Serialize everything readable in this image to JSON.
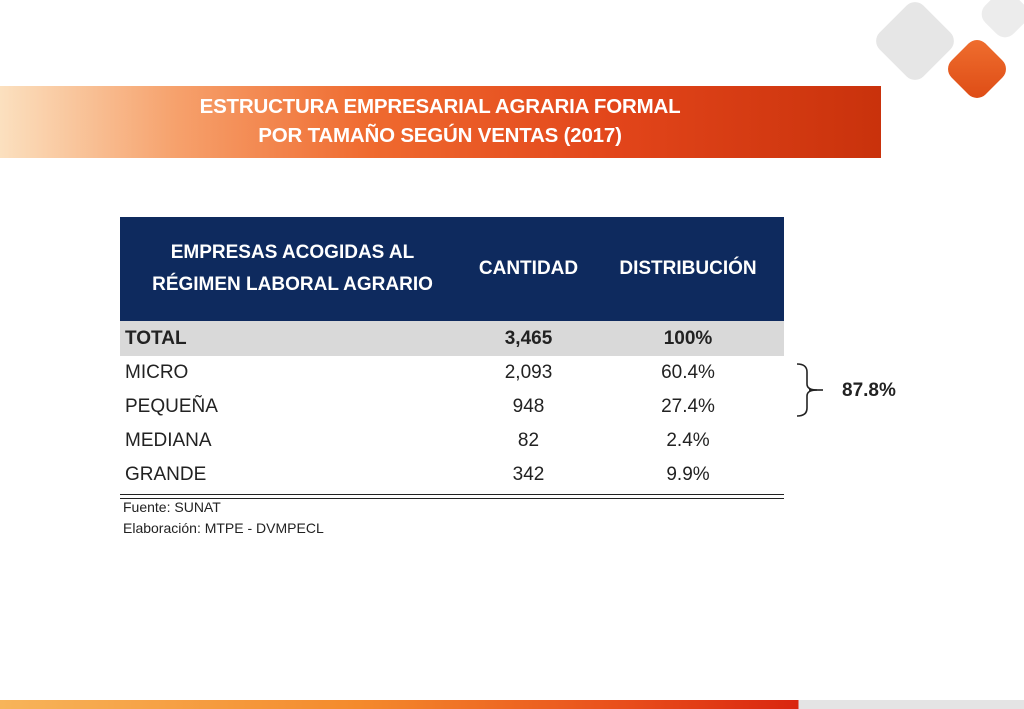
{
  "title": {
    "line1": "ESTRUCTURA EMPRESARIAL AGRARIA FORMAL",
    "line2": "POR TAMAÑO SEGÚN VENTAS (2017)"
  },
  "table": {
    "headers": {
      "col1_line1": "EMPRESAS ACOGIDAS AL",
      "col1_line2": "RÉGIMEN LABORAL AGRARIO",
      "col2": "CANTIDAD",
      "col3": "DISTRIBUCIÓN"
    },
    "total": {
      "label": "TOTAL",
      "cantidad": "3,465",
      "distribucion": "100%"
    },
    "rows": [
      {
        "label": "MICRO",
        "cantidad": "2,093",
        "distribucion": "60.4%"
      },
      {
        "label": "PEQUEÑA",
        "cantidad": "948",
        "distribucion": "27.4%"
      },
      {
        "label": "MEDIANA",
        "cantidad": "82",
        "distribucion": "2.4%"
      },
      {
        "label": "GRANDE",
        "cantidad": "342",
        "distribucion": "9.9%"
      }
    ]
  },
  "notes": {
    "source": "Fuente: SUNAT",
    "elaboration": "Elaboración: MTPE - DVMPECL"
  },
  "bracket": {
    "value": "87.8%"
  },
  "colors": {
    "header_bg": "#0e2a5e",
    "total_row_bg": "#d9d9d9",
    "accent_orange": "#e2451a"
  }
}
